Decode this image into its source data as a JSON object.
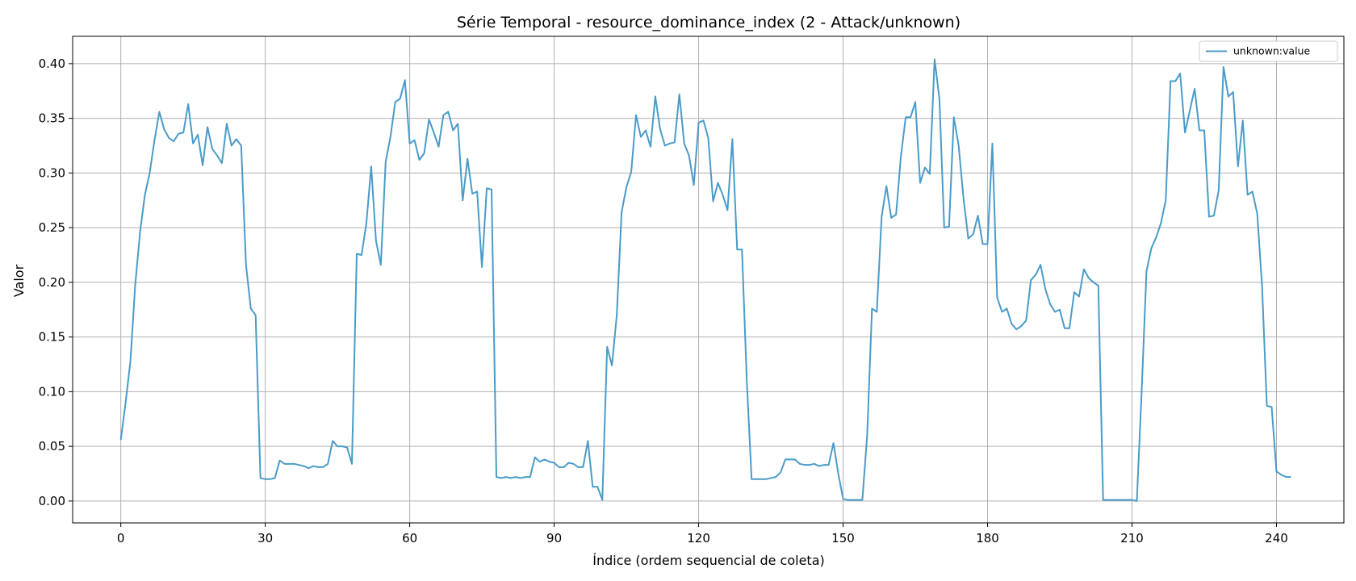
{
  "chart_data": {
    "type": "line",
    "title": "Série Temporal - resource_dominance_index (2 - Attack/unknown)",
    "xlabel": "Índice (ordem sequencial de coleta)",
    "ylabel": "Valor",
    "xlim": [
      -10,
      254
    ],
    "ylim": [
      -0.02,
      0.425
    ],
    "xticks": [
      0,
      30,
      60,
      90,
      120,
      150,
      180,
      210,
      240
    ],
    "xtick_labels": [
      "0",
      "30",
      "60",
      "90",
      "120",
      "150",
      "180",
      "210",
      "240"
    ],
    "yticks": [
      0.0,
      0.05,
      0.1,
      0.15,
      0.2,
      0.25,
      0.3,
      0.35,
      0.4
    ],
    "ytick_labels": [
      "0.00",
      "0.05",
      "0.10",
      "0.15",
      "0.20",
      "0.25",
      "0.30",
      "0.35",
      "0.40"
    ],
    "grid": true,
    "legend": "top-right",
    "series": [
      {
        "name": "unknown:value",
        "color": "#4a9bc9",
        "x_start": 0,
        "values": [
          0.056,
          0.09,
          0.128,
          0.198,
          0.246,
          0.28,
          0.3,
          0.33,
          0.356,
          0.34,
          0.332,
          0.329,
          0.336,
          0.337,
          0.363,
          0.327,
          0.335,
          0.307,
          0.342,
          0.322,
          0.316,
          0.309,
          0.345,
          0.325,
          0.331,
          0.325,
          0.216,
          0.176,
          0.17,
          0.021,
          0.02,
          0.02,
          0.021,
          0.037,
          0.034,
          0.034,
          0.034,
          0.033,
          0.032,
          0.03,
          0.032,
          0.031,
          0.031,
          0.034,
          0.055,
          0.05,
          0.05,
          0.049,
          0.034,
          0.226,
          0.225,
          0.254,
          0.306,
          0.238,
          0.216,
          0.31,
          0.333,
          0.365,
          0.368,
          0.385,
          0.327,
          0.33,
          0.312,
          0.318,
          0.349,
          0.337,
          0.324,
          0.353,
          0.356,
          0.339,
          0.345,
          0.275,
          0.313,
          0.281,
          0.283,
          0.214,
          0.286,
          0.285,
          0.022,
          0.021,
          0.022,
          0.021,
          0.022,
          0.021,
          0.022,
          0.022,
          0.04,
          0.036,
          0.038,
          0.036,
          0.035,
          0.031,
          0.031,
          0.035,
          0.034,
          0.031,
          0.031,
          0.055,
          0.013,
          0.013,
          0.001,
          0.141,
          0.124,
          0.17,
          0.264,
          0.287,
          0.301,
          0.353,
          0.333,
          0.339,
          0.324,
          0.37,
          0.34,
          0.325,
          0.327,
          0.328,
          0.372,
          0.327,
          0.316,
          0.289,
          0.346,
          0.348,
          0.332,
          0.274,
          0.291,
          0.28,
          0.266,
          0.331,
          0.23,
          0.23,
          0.11,
          0.02,
          0.02,
          0.02,
          0.02,
          0.021,
          0.022,
          0.026,
          0.038,
          0.038,
          0.038,
          0.034,
          0.033,
          0.033,
          0.034,
          0.032,
          0.033,
          0.033,
          0.053,
          0.025,
          0.002,
          0.001,
          0.001,
          0.001,
          0.001,
          0.06,
          0.176,
          0.173,
          0.26,
          0.288,
          0.259,
          0.262,
          0.315,
          0.351,
          0.351,
          0.365,
          0.291,
          0.305,
          0.299,
          0.404,
          0.368,
          0.25,
          0.251,
          0.351,
          0.325,
          0.277,
          0.24,
          0.244,
          0.261,
          0.235,
          0.235,
          0.327,
          0.186,
          0.173,
          0.176,
          0.162,
          0.157,
          0.16,
          0.165,
          0.202,
          0.207,
          0.216,
          0.194,
          0.18,
          0.173,
          0.175,
          0.158,
          0.158,
          0.191,
          0.187,
          0.212,
          0.204,
          0.2,
          0.197,
          0.001,
          0.001,
          0.001,
          0.001,
          0.001,
          0.001,
          0.001,
          0.0,
          0.1,
          0.21,
          0.231,
          0.241,
          0.254,
          0.275,
          0.384,
          0.384,
          0.391,
          0.337,
          0.357,
          0.377,
          0.339,
          0.339,
          0.26,
          0.261,
          0.284,
          0.397,
          0.37,
          0.374,
          0.306,
          0.348,
          0.28,
          0.283,
          0.263,
          0.197,
          0.087,
          0.086,
          0.027,
          0.024,
          0.022,
          0.022
        ]
      }
    ]
  }
}
